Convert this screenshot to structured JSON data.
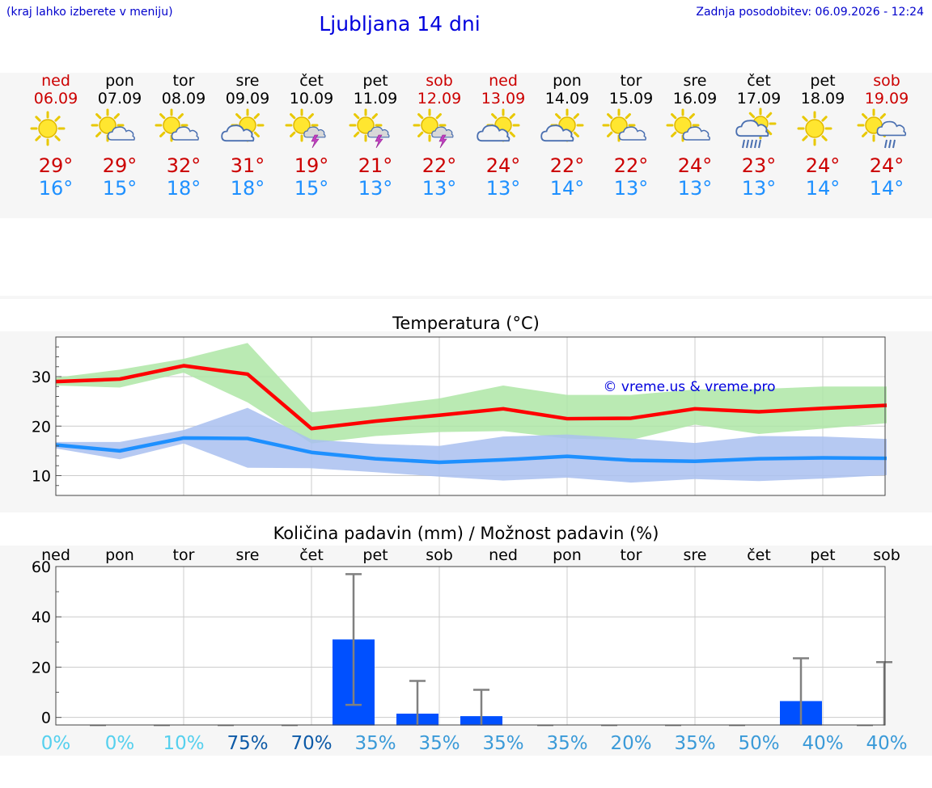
{
  "header": {
    "note": "(kraj lahko izberete v meniju)",
    "title": "Ljubljana 14 dni",
    "updated": "Zadnja posodobitev: 06.09.2026 - 12:24"
  },
  "colors": {
    "title_blue": "#0000dd",
    "weekend_red": "#cc0000",
    "max_line": "#ff0000",
    "max_band": "#aee6a6",
    "min_line": "#1e90ff",
    "min_band": "#a9c0f0",
    "bar": "#0050ff",
    "whisker": "#808080"
  },
  "days": [
    {
      "name": "ned",
      "date": "06.09",
      "weekend": true,
      "icon": "sun-icon",
      "tmax": "29°",
      "tmin": "16°"
    },
    {
      "name": "pon",
      "date": "07.09",
      "weekend": false,
      "icon": "sun-cloud-icon",
      "tmax": "29°",
      "tmin": "15°"
    },
    {
      "name": "tor",
      "date": "08.09",
      "weekend": false,
      "icon": "sun-cloud-icon",
      "tmax": "32°",
      "tmin": "18°"
    },
    {
      "name": "sre",
      "date": "09.09",
      "weekend": false,
      "icon": "cloud-sun-icon",
      "tmax": "31°",
      "tmin": "18°"
    },
    {
      "name": "čet",
      "date": "10.09",
      "weekend": false,
      "icon": "sun-thunder-icon",
      "tmax": "19°",
      "tmin": "15°"
    },
    {
      "name": "pet",
      "date": "11.09",
      "weekend": false,
      "icon": "sun-thunder-icon",
      "tmax": "21°",
      "tmin": "13°"
    },
    {
      "name": "sob",
      "date": "12.09",
      "weekend": true,
      "icon": "sun-thunder-icon",
      "tmax": "22°",
      "tmin": "13°"
    },
    {
      "name": "ned",
      "date": "13.09",
      "weekend": true,
      "icon": "cloud-sun-icon",
      "tmax": "24°",
      "tmin": "13°"
    },
    {
      "name": "pon",
      "date": "14.09",
      "weekend": false,
      "icon": "cloud-sun-icon",
      "tmax": "22°",
      "tmin": "14°"
    },
    {
      "name": "tor",
      "date": "15.09",
      "weekend": false,
      "icon": "sun-cloud-icon",
      "tmax": "22°",
      "tmin": "13°"
    },
    {
      "name": "sre",
      "date": "16.09",
      "weekend": false,
      "icon": "sun-cloud-icon",
      "tmax": "24°",
      "tmin": "13°"
    },
    {
      "name": "čet",
      "date": "17.09",
      "weekend": false,
      "icon": "cloud-rain-icon",
      "tmax": "23°",
      "tmin": "13°"
    },
    {
      "name": "pet",
      "date": "18.09",
      "weekend": false,
      "icon": "sun-icon",
      "tmax": "24°",
      "tmin": "14°"
    },
    {
      "name": "sob",
      "date": "19.09",
      "weekend": true,
      "icon": "sun-rain-icon",
      "tmax": "24°",
      "tmin": "14°"
    }
  ],
  "chart_data": [
    {
      "type": "line",
      "title": "Temperatura (°C)",
      "annotation": "© vreme.us & vreme.pro",
      "x": [
        "ned",
        "pon",
        "tor",
        "sre",
        "čet",
        "pet",
        "sob",
        "ned",
        "pon",
        "tor",
        "sre",
        "čet",
        "pet",
        "sob"
      ],
      "ylim": [
        6,
        38
      ],
      "yticks": [
        10,
        20,
        30
      ],
      "grid": true,
      "series": [
        {
          "values": [
            29,
            29.5,
            32.2,
            30.5,
            19.5,
            21,
            22.2,
            23.5,
            21.5,
            21.6,
            23.5,
            22.9,
            23.6,
            24.2
          ],
          "band_low": [
            28.2,
            27.8,
            30.8,
            24.8,
            16.5,
            18,
            18.8,
            19,
            17.5,
            17.2,
            20.3,
            18.4,
            19.5,
            20.6
          ],
          "band_high": [
            29.8,
            31.4,
            33.6,
            36.8,
            22.8,
            24,
            25.6,
            28.2,
            26.3,
            26.3,
            27.4,
            27.5,
            28,
            28
          ]
        },
        {
          "values": [
            16.2,
            15,
            17.6,
            17.5,
            14.7,
            13.4,
            12.7,
            13.2,
            13.9,
            13.1,
            12.9,
            13.4,
            13.6,
            13.5
          ],
          "band_low": [
            15.5,
            13.3,
            16.5,
            11.6,
            11.5,
            10.7,
            9.8,
            9,
            9.6,
            8.6,
            9.3,
            8.9,
            9.4,
            10.1
          ],
          "band_high": [
            16.8,
            16.8,
            19.2,
            23.7,
            17.3,
            16.4,
            16,
            17.9,
            18.3,
            17.5,
            16.6,
            18,
            17.9,
            17.4
          ]
        }
      ]
    },
    {
      "type": "bar",
      "title": "Količina padavin (mm) / Možnost padavin (%)",
      "categories": [
        "ned",
        "pon",
        "tor",
        "sre",
        "čet",
        "pet",
        "sob",
        "ned",
        "pon",
        "tor",
        "sre",
        "čet",
        "pet",
        "sob"
      ],
      "ylim": [
        -3,
        60
      ],
      "yticks": [
        0,
        20,
        40,
        60
      ],
      "grid": true,
      "values": [
        0,
        0,
        0,
        0,
        31,
        1.5,
        0.5,
        0,
        0,
        0,
        0,
        6.5,
        0,
        6.5
      ],
      "err_low": [
        0,
        0,
        0,
        0,
        5,
        0,
        0,
        0,
        0,
        0,
        0,
        0,
        0,
        0
      ],
      "err_high": [
        0,
        0,
        0,
        0,
        57,
        14.5,
        11,
        0,
        0,
        0,
        0,
        23.5,
        0,
        22
      ],
      "probability": [
        "0%",
        "0%",
        "10%",
        "75%",
        "70%",
        "35%",
        "35%",
        "35%",
        "35%",
        "20%",
        "35%",
        "50%",
        "40%",
        "40%"
      ],
      "probability_colors": [
        "#55d0ee",
        "#55d0ee",
        "#55d0ee",
        "#0d5aa7",
        "#0d5aa7",
        "#3a9ad8",
        "#3a9ad8",
        "#3a9ad8",
        "#3a9ad8",
        "#3a9ad8",
        "#3a9ad8",
        "#3a9ad8",
        "#3a9ad8",
        "#3a9ad8"
      ]
    }
  ]
}
